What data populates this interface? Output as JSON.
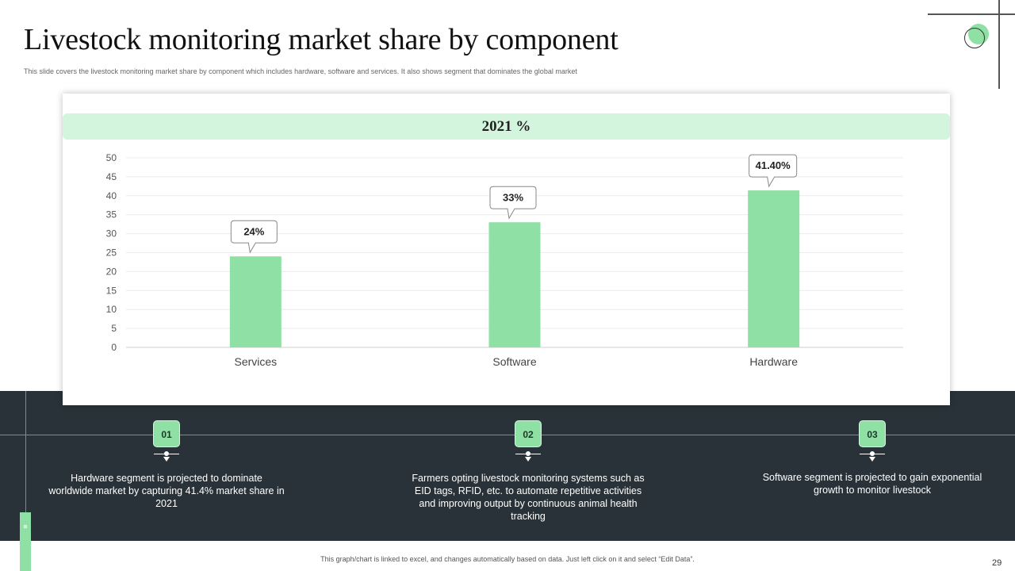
{
  "slide": {
    "title": "Livestock monitoring market share by component",
    "subtitle": "This slide covers the livestock monitoring market share by component which includes hardware, software and services. It also shows segment that dominates the global market",
    "footer": "This graph/chart is linked to excel, and changes automatically based on data. Just left click on it and select “Edit Data”.",
    "page_number": "29"
  },
  "colors": {
    "accent": "#8ee0a4",
    "header_fill": "#d3f5dd",
    "dark_band": "#283238"
  },
  "chart_data": {
    "type": "bar",
    "title": "2021 %",
    "categories": [
      "Services",
      "Software",
      "Hardware"
    ],
    "values": [
      24,
      33,
      41.4
    ],
    "data_labels": [
      "24%",
      "33%",
      "41.40%"
    ],
    "ylim": [
      0,
      50
    ],
    "yticks": [
      0,
      5,
      10,
      15,
      20,
      25,
      30,
      35,
      40,
      45,
      50
    ],
    "xlabel": "",
    "ylabel": "",
    "grid": true,
    "legend": "none"
  },
  "points": [
    {
      "num": "01",
      "text": "Hardware segment is projected to dominate worldwide market by capturing 41.4% market share in 2021"
    },
    {
      "num": "02",
      "text": "Farmers opting livestock monitoring systems such as EID tags, RFID, etc. to automate repetitive activities and improving output by continuous animal health tracking"
    },
    {
      "num": "03",
      "text": "Software segment is projected to gain exponential growth to monitor livestock"
    }
  ]
}
